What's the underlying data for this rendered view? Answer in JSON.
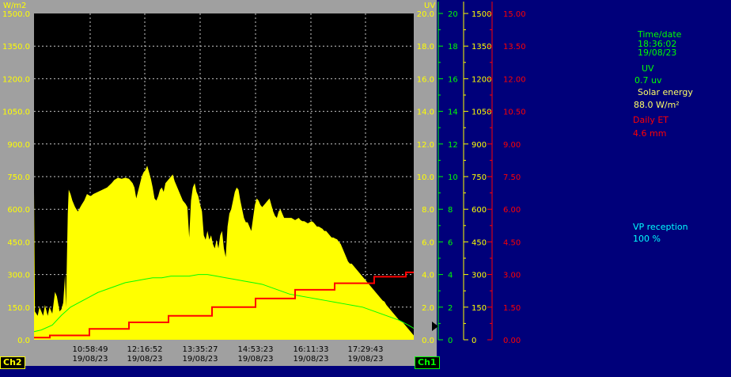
{
  "chart_data": {
    "type": "area",
    "left_axis": {
      "unit": "W/m2",
      "ticks": [
        "1500.0",
        "1350.0",
        "1200.0",
        "1050.0",
        "900.0",
        "750.0",
        "600.0",
        "450.0",
        "300.0",
        "150.0",
        "0.0"
      ],
      "min": 0,
      "max": 1500,
      "color": "#ffff00"
    },
    "right_uv_axis_inner": {
      "unit": "UV",
      "ticks": [
        "20.0",
        "18.0",
        "16.0",
        "14.0",
        "12.0",
        "10.0",
        "8.0",
        "6.0",
        "4.0",
        "2.0",
        "0.0"
      ],
      "min": 0,
      "max": 20,
      "color": "#ffff00"
    },
    "uv_axis": {
      "ticks": [
        "20",
        "18",
        "16",
        "14",
        "12",
        "10",
        "8",
        "6",
        "4",
        "2",
        "0"
      ],
      "min": 0,
      "max": 20,
      "color": "#00ff00"
    },
    "solar_axis": {
      "ticks": [
        "1500",
        "1350",
        "1200",
        "1050",
        "900",
        "750",
        "600",
        "450",
        "300",
        "150",
        "0"
      ],
      "min": 0,
      "max": 1500,
      "color": "#ffff00"
    },
    "et_axis": {
      "ticks": [
        "15.00",
        "13.50",
        "12.00",
        "10.50",
        "9.00",
        "7.50",
        "6.00",
        "4.50",
        "3.00",
        "1.50",
        "0.00"
      ],
      "min": 0,
      "max": 15,
      "color": "#ff0000"
    },
    "x_ticks": [
      {
        "time": "10:58:49",
        "date": "19/08/23"
      },
      {
        "time": "12:16:52",
        "date": "19/08/23"
      },
      {
        "time": "13:35:27",
        "date": "19/08/23"
      },
      {
        "time": "14:53:23",
        "date": "19/08/23"
      },
      {
        "time": "16:11:33",
        "date": "19/08/23"
      },
      {
        "time": "17:29:43",
        "date": "19/08/23"
      }
    ],
    "series": [
      {
        "name": "Solar energy",
        "color": "#ffff00",
        "axis": "solar",
        "points": [
          [
            0,
            680
          ],
          [
            1,
            130
          ],
          [
            4,
            110
          ],
          [
            6,
            150
          ],
          [
            8,
            130
          ],
          [
            10,
            110
          ],
          [
            12,
            160
          ],
          [
            15,
            110
          ],
          [
            17,
            150
          ],
          [
            20,
            120
          ],
          [
            23,
            220
          ],
          [
            25,
            200
          ],
          [
            28,
            130
          ],
          [
            30,
            140
          ],
          [
            32,
            170
          ],
          [
            34,
            300
          ],
          [
            35,
            150
          ],
          [
            37,
            580
          ],
          [
            38,
            690
          ],
          [
            40,
            670
          ],
          [
            42,
            640
          ],
          [
            45,
            610
          ],
          [
            48,
            590
          ],
          [
            52,
            620
          ],
          [
            55,
            640
          ],
          [
            58,
            670
          ],
          [
            62,
            660
          ],
          [
            65,
            670
          ],
          [
            70,
            680
          ],
          [
            75,
            690
          ],
          [
            80,
            700
          ],
          [
            85,
            720
          ],
          [
            88,
            735
          ],
          [
            92,
            745
          ],
          [
            96,
            740
          ],
          [
            100,
            745
          ],
          [
            104,
            740
          ],
          [
            108,
            720
          ],
          [
            110,
            700
          ],
          [
            112,
            650
          ],
          [
            115,
            700
          ],
          [
            118,
            750
          ],
          [
            120,
            770
          ],
          [
            122,
            780
          ],
          [
            124,
            800
          ],
          [
            126,
            770
          ],
          [
            128,
            740
          ],
          [
            130,
            700
          ],
          [
            132,
            650
          ],
          [
            134,
            640
          ],
          [
            136,
            660
          ],
          [
            138,
            690
          ],
          [
            140,
            700
          ],
          [
            142,
            680
          ],
          [
            144,
            720
          ],
          [
            146,
            730
          ],
          [
            148,
            740
          ],
          [
            150,
            750
          ],
          [
            152,
            760
          ],
          [
            154,
            730
          ],
          [
            156,
            710
          ],
          [
            158,
            690
          ],
          [
            160,
            670
          ],
          [
            163,
            640
          ],
          [
            166,
            625
          ],
          [
            168,
            610
          ],
          [
            170,
            470
          ],
          [
            172,
            640
          ],
          [
            174,
            700
          ],
          [
            176,
            720
          ],
          [
            178,
            680
          ],
          [
            180,
            660
          ],
          [
            182,
            620
          ],
          [
            184,
            590
          ],
          [
            186,
            480
          ],
          [
            188,
            460
          ],
          [
            190,
            500
          ],
          [
            192,
            460
          ],
          [
            194,
            480
          ],
          [
            196,
            440
          ],
          [
            198,
            420
          ],
          [
            200,
            460
          ],
          [
            202,
            420
          ],
          [
            204,
            480
          ],
          [
            206,
            500
          ],
          [
            208,
            420
          ],
          [
            210,
            380
          ],
          [
            212,
            520
          ],
          [
            214,
            580
          ],
          [
            216,
            600
          ],
          [
            218,
            640
          ],
          [
            220,
            680
          ],
          [
            222,
            700
          ],
          [
            224,
            690
          ],
          [
            226,
            640
          ],
          [
            228,
            600
          ],
          [
            230,
            560
          ],
          [
            232,
            540
          ],
          [
            234,
            540
          ],
          [
            236,
            520
          ],
          [
            238,
            500
          ],
          [
            240,
            560
          ],
          [
            242,
            620
          ],
          [
            244,
            650
          ],
          [
            246,
            640
          ],
          [
            248,
            620
          ],
          [
            250,
            610
          ],
          [
            252,
            620
          ],
          [
            254,
            630
          ],
          [
            256,
            640
          ],
          [
            258,
            650
          ],
          [
            260,
            620
          ],
          [
            262,
            590
          ],
          [
            264,
            570
          ],
          [
            266,
            560
          ],
          [
            268,
            590
          ],
          [
            270,
            600
          ],
          [
            272,
            580
          ],
          [
            274,
            560
          ],
          [
            276,
            560
          ],
          [
            278,
            560
          ],
          [
            280,
            560
          ],
          [
            282,
            560
          ],
          [
            284,
            555
          ],
          [
            286,
            550
          ],
          [
            288,
            555
          ],
          [
            290,
            560
          ],
          [
            292,
            550
          ],
          [
            294,
            545
          ],
          [
            296,
            545
          ],
          [
            298,
            540
          ],
          [
            300,
            535
          ],
          [
            302,
            540
          ],
          [
            304,
            545
          ],
          [
            306,
            540
          ],
          [
            308,
            530
          ],
          [
            310,
            520
          ],
          [
            312,
            520
          ],
          [
            314,
            515
          ],
          [
            316,
            510
          ],
          [
            318,
            500
          ],
          [
            320,
            500
          ],
          [
            322,
            490
          ],
          [
            324,
            480
          ],
          [
            326,
            470
          ],
          [
            328,
            470
          ],
          [
            330,
            465
          ],
          [
            332,
            462
          ],
          [
            334,
            450
          ],
          [
            336,
            440
          ],
          [
            338,
            420
          ],
          [
            340,
            400
          ],
          [
            342,
            380
          ],
          [
            344,
            360
          ],
          [
            346,
            350
          ],
          [
            348,
            350
          ],
          [
            350,
            340
          ],
          [
            352,
            330
          ],
          [
            354,
            320
          ],
          [
            356,
            310
          ],
          [
            358,
            300
          ],
          [
            360,
            290
          ],
          [
            362,
            280
          ],
          [
            364,
            270
          ],
          [
            366,
            260
          ],
          [
            368,
            250
          ],
          [
            370,
            240
          ],
          [
            372,
            230
          ],
          [
            374,
            220
          ],
          [
            376,
            210
          ],
          [
            378,
            200
          ],
          [
            380,
            190
          ],
          [
            382,
            180
          ],
          [
            384,
            175
          ],
          [
            386,
            160
          ],
          [
            388,
            150
          ],
          [
            390,
            140
          ],
          [
            392,
            130
          ],
          [
            394,
            120
          ],
          [
            396,
            110
          ],
          [
            398,
            100
          ],
          [
            400,
            90
          ],
          [
            402,
            85
          ],
          [
            404,
            80
          ],
          [
            406,
            70
          ],
          [
            408,
            60
          ],
          [
            410,
            50
          ],
          [
            412,
            40
          ],
          [
            414,
            30
          ],
          [
            416,
            20
          ]
        ]
      },
      {
        "name": "UV",
        "color": "#00ff00",
        "axis": "uv",
        "points": [
          [
            0,
            0.5
          ],
          [
            8,
            0.6
          ],
          [
            20,
            0.9
          ],
          [
            30,
            1.5
          ],
          [
            40,
            2.0
          ],
          [
            50,
            2.3
          ],
          [
            60,
            2.6
          ],
          [
            70,
            2.9
          ],
          [
            80,
            3.1
          ],
          [
            90,
            3.3
          ],
          [
            100,
            3.5
          ],
          [
            110,
            3.6
          ],
          [
            120,
            3.7
          ],
          [
            130,
            3.8
          ],
          [
            140,
            3.8
          ],
          [
            150,
            3.9
          ],
          [
            160,
            3.9
          ],
          [
            170,
            3.9
          ],
          [
            180,
            4.0
          ],
          [
            190,
            4.0
          ],
          [
            200,
            3.9
          ],
          [
            210,
            3.8
          ],
          [
            220,
            3.7
          ],
          [
            230,
            3.6
          ],
          [
            240,
            3.5
          ],
          [
            250,
            3.4
          ],
          [
            260,
            3.2
          ],
          [
            270,
            3.0
          ],
          [
            280,
            2.8
          ],
          [
            290,
            2.7
          ],
          [
            300,
            2.6
          ],
          [
            310,
            2.5
          ],
          [
            320,
            2.4
          ],
          [
            330,
            2.3
          ],
          [
            340,
            2.2
          ],
          [
            350,
            2.1
          ],
          [
            360,
            2.0
          ],
          [
            370,
            1.8
          ],
          [
            380,
            1.6
          ],
          [
            390,
            1.4
          ],
          [
            400,
            1.2
          ],
          [
            410,
            0.9
          ],
          [
            416,
            0.7
          ]
        ]
      },
      {
        "name": "Daily ET",
        "color": "#ff0000",
        "axis": "et",
        "steps": [
          [
            0,
            0.1
          ],
          [
            20,
            0.2
          ],
          [
            70,
            0.5
          ],
          [
            120,
            0.8
          ],
          [
            170,
            1.1
          ],
          [
            225,
            1.5
          ],
          [
            280,
            1.9
          ],
          [
            330,
            2.3
          ],
          [
            380,
            2.6
          ],
          [
            430,
            2.9
          ],
          [
            470,
            3.1
          ]
        ]
      }
    ],
    "grid": true,
    "legend": "right"
  },
  "panel": {
    "time_label": "Time/date",
    "time_value": "18:36:02",
    "date_value": "19/08/23",
    "uv_label": "UV",
    "uv_value": "0.7 uv",
    "solar_label": "Solar energy",
    "solar_value": "88.0 W/m²",
    "et_label": "Daily ET",
    "et_value": "4.6 mm",
    "vp_label": "VP reception",
    "vp_value": "100 %"
  },
  "channels": {
    "left": "Ch2",
    "right": "Ch1"
  },
  "colors": {
    "background": "#00007a",
    "plot": "#000000",
    "frame": "#a0a0a0",
    "yellow": "#ffff00",
    "green": "#00ff00",
    "red": "#ff0000",
    "cyan": "#00ffff"
  }
}
